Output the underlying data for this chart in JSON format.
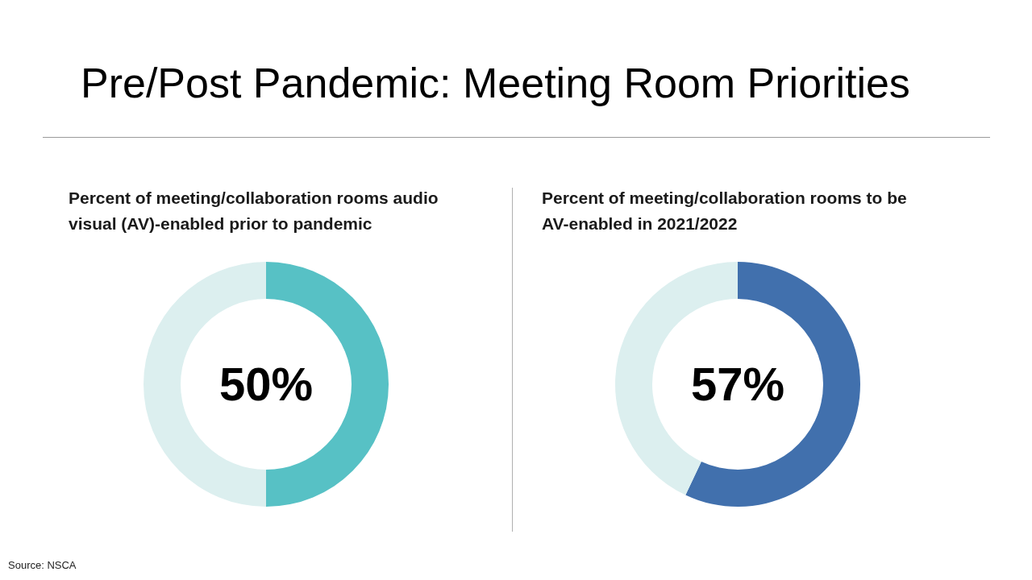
{
  "chart_data": [
    {
      "type": "donut",
      "title": "Pre/Post Pandemic: Meeting Room Priorities",
      "subtitle": "Percent of meeting/collaboration rooms audio visual (AV)-enabled prior to pandemic",
      "categories": [
        null,
        null
      ],
      "values": [
        50,
        50
      ],
      "colors": [
        "#57c1c5",
        "#dcefef"
      ],
      "value_labels": [
        "50%",
        null
      ],
      "annotations": [
        "Source: NSCA"
      ]
    },
    {
      "type": "donut",
      "subtitle": "Percent of meeting/collaboration rooms to be AV-enabled in 2021/2022",
      "categories": [
        null,
        null
      ],
      "values": [
        57,
        43
      ],
      "colors": [
        "#4170ad",
        "#dcefef"
      ],
      "value_labels": [
        "57%",
        null
      ]
    }
  ]
}
